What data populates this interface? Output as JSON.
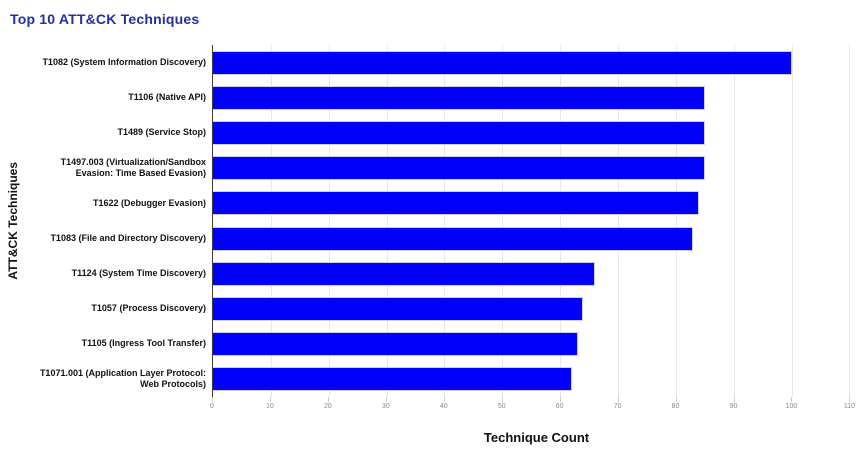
{
  "title": "Top 10 ATT&CK Techniques",
  "chart_data": {
    "type": "bar",
    "orientation": "horizontal",
    "title": "Top 10 ATT&CK Techniques",
    "xlabel": "Technique Count",
    "ylabel": "ATT&CK Techniques",
    "xlim": [
      0,
      110
    ],
    "xticks": [
      0,
      10,
      20,
      30,
      40,
      50,
      60,
      70,
      80,
      90,
      100,
      110
    ],
    "grid": true,
    "legend": false,
    "categories": [
      "T1082 (System Information Discovery)",
      "T1106 (Native API)",
      "T1489 (Service Stop)",
      "T1497.003 (Virtualization/Sandbox Evasion: Time Based Evasion)",
      "T1622 (Debugger Evasion)",
      "T1083 (File and Directory Discovery)",
      "T1124 (System Time Discovery)",
      "T1057 (Process Discovery)",
      "T1105 (Ingress Tool Transfer)",
      "T1071.001 (Application Layer Protocol: Web Protocols)"
    ],
    "values": [
      100,
      85,
      85,
      85,
      84,
      83,
      66,
      64,
      63,
      62
    ]
  },
  "colors": {
    "title": "#2230a3",
    "bar": "#0101fb",
    "gridline": "#e7e7e7",
    "axis_line": "#3c3c3c",
    "tick_label": "#8a8a8a",
    "label_text": "#111111"
  }
}
